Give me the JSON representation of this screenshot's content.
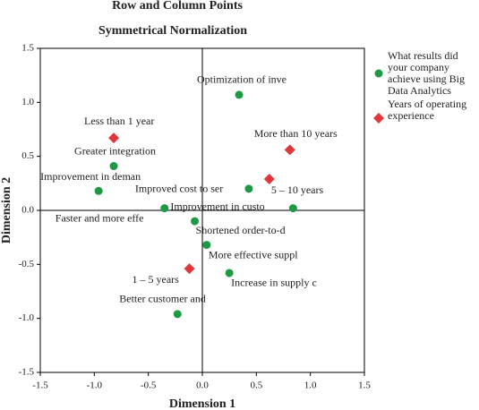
{
  "chart_data": {
    "type": "scatter",
    "title": "Row and Column Points",
    "subtitle": "Symmetrical Normalization",
    "x_label": "Dimension 1",
    "y_label": "Dimension 2",
    "xlim": [
      -1.5,
      1.5
    ],
    "ylim": [
      -1.5,
      1.5
    ],
    "xticks": [
      -1.5,
      {
        "value": -1,
        "label": "-1.0"
      },
      -0.5,
      {
        "value": 0,
        "label": "0.0"
      },
      0.5,
      {
        "value": 1,
        "label": "1.0"
      },
      1.5
    ],
    "yticks": [
      -1.5,
      {
        "value": -1,
        "label": "-1.0"
      },
      -0.5,
      {
        "value": 0,
        "label": "0.0"
      },
      0.5,
      {
        "value": 1,
        "label": "1.0"
      },
      1.5
    ],
    "series": [
      {
        "name": "What results did your company achieve using Big Data Analytics",
        "color": "#1e9a45",
        "marker": "circle",
        "labels": [
          "Optimization of inve",
          "Greater integration",
          "Improvement in deman",
          "Improved cost to ser",
          "Improvement in custo",
          "Faster and more effe",
          "Shortened order-to-d",
          "More effective suppl",
          "Increase in supply c",
          "Better customer and"
        ],
        "x": [
          0.34,
          -0.82,
          -0.96,
          0.43,
          0.84,
          -0.35,
          -0.07,
          0.04,
          0.25,
          -0.23
        ],
        "values": [
          1.07,
          0.41,
          0.18,
          0.2,
          0.02,
          0.02,
          -0.1,
          -0.32,
          -0.58,
          -0.96
        ]
      },
      {
        "name": "Years of operating experience",
        "color": "#e0373c",
        "marker": "diamond",
        "labels": [
          "Less than 1 year",
          "More than 10 years",
          "5 – 10 years",
          "1 – 5 years"
        ],
        "x": [
          -0.82,
          0.81,
          0.62,
          -0.12
        ],
        "values": [
          0.67,
          0.56,
          0.29,
          -0.54
        ]
      }
    ]
  }
}
